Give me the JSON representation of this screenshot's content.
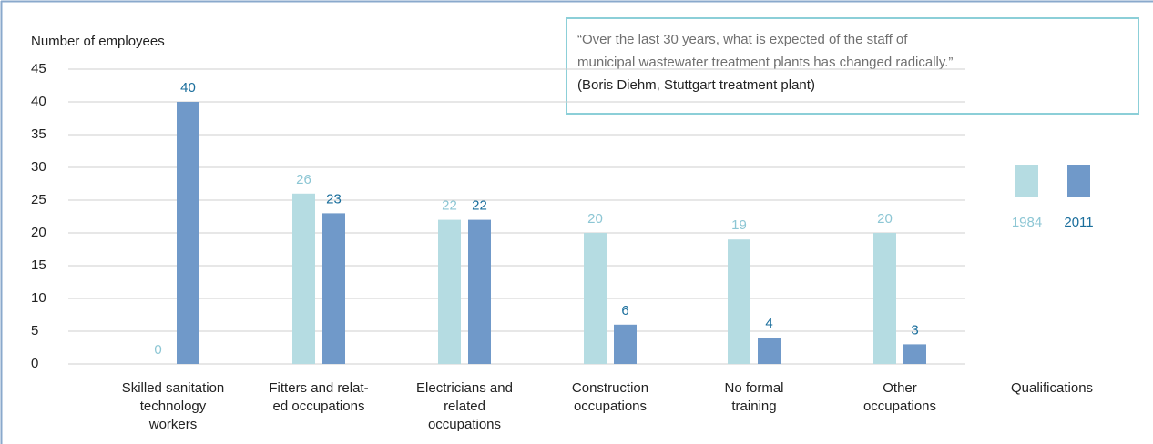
{
  "chart_data": {
    "type": "bar",
    "y_axis_label": "Number of employees",
    "x_axis_label": "Qualifications",
    "categories": [
      [
        "Skilled sanitation",
        "technology",
        "workers"
      ],
      [
        "Fitters and relat-",
        "ed occupations"
      ],
      [
        "Electricians and",
        "related",
        "occupations"
      ],
      [
        "Construction",
        "occupations"
      ],
      [
        "No formal",
        "training"
      ],
      [
        "Other",
        "occupations"
      ]
    ],
    "series": [
      {
        "name": "1984",
        "color": "#b5dce2",
        "label_color": "#8cc6d4",
        "values": [
          0,
          26,
          22,
          20,
          19,
          20
        ]
      },
      {
        "name": "2011",
        "color": "#7099c9",
        "label_color": "#1a6e9c",
        "values": [
          40,
          23,
          22,
          6,
          4,
          3
        ]
      }
    ],
    "ylim": [
      0,
      45
    ],
    "yticks": [
      0,
      5,
      10,
      15,
      20,
      25,
      30,
      35,
      40,
      45
    ],
    "grid": true,
    "legend": "right",
    "quote": [
      "“Over the last 30 years, what is expected of the staff of",
      "municipal wastewater treatment plants has changed radically.”",
      "(Boris Diehm, Stuttgart treatment plant)"
    ]
  }
}
